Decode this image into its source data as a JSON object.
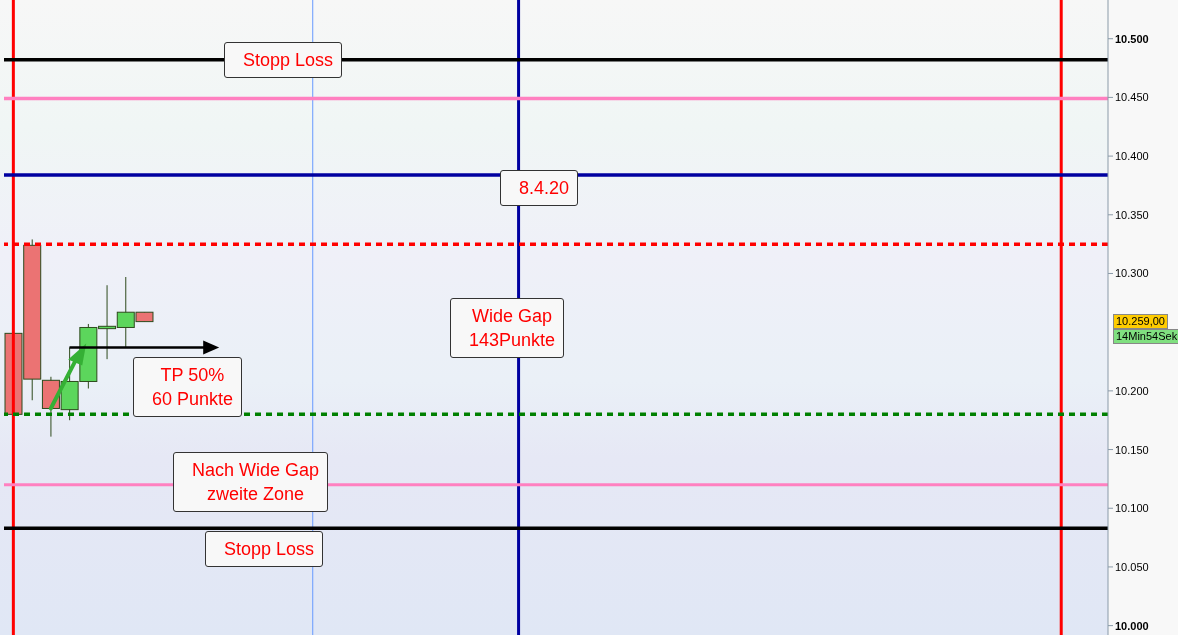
{
  "chart_data": {
    "type": "candlestick",
    "categories": [
      null,
      null,
      null,
      null,
      null,
      null,
      null,
      null,
      null,
      null,
      null,
      null,
      null,
      null,
      null,
      null,
      null,
      null,
      null,
      null,
      null,
      null,
      null,
      null,
      null,
      null,
      null,
      null,
      null,
      null,
      null,
      null,
      null,
      null,
      null,
      null,
      null,
      null,
      null,
      null,
      null,
      null,
      null,
      null,
      null,
      null,
      null,
      null,
      null,
      null,
      null,
      null,
      null,
      null,
      null,
      null,
      null,
      null,
      null
    ],
    "ohlc": [
      [
        10.249,
        10.249,
        10.18,
        10.18
      ],
      [
        10.324,
        10.329,
        10.192,
        10.21
      ],
      [
        10.209,
        10.212,
        10.161,
        10.185
      ],
      [
        10.184,
        10.237,
        10.175,
        10.208
      ],
      [
        10.208,
        10.257,
        10.202,
        10.254
      ],
      [
        10.253,
        10.29,
        10.227,
        10.255
      ],
      [
        10.254,
        10.297,
        10.237,
        10.267
      ],
      [
        10.267,
        10.267,
        10.259,
        10.259
      ],
      null,
      null,
      null,
      null,
      null,
      null,
      null,
      null,
      null,
      null,
      null,
      null,
      null,
      null,
      null,
      null,
      null,
      null,
      null,
      null,
      null,
      null,
      null,
      null,
      null,
      null,
      null,
      null,
      null,
      null,
      null,
      null,
      null,
      null,
      null,
      null,
      null,
      null,
      null,
      null,
      null,
      null,
      null,
      null,
      null,
      null,
      null,
      null,
      null,
      null,
      null
    ],
    "colors": [
      "#eb7373",
      "#eb7373",
      "#eb7373",
      "#5cd65c",
      "#5cd65c",
      "#5cd65c",
      "#5cd65c",
      "#eb7373",
      null,
      null,
      null,
      null,
      null,
      null,
      null,
      null,
      null,
      null,
      null,
      null,
      null,
      null,
      null,
      null,
      null,
      null,
      null,
      null,
      null,
      null,
      null,
      null,
      null,
      null,
      null,
      null,
      null,
      null,
      null,
      null,
      null,
      null,
      null,
      null,
      null,
      null,
      null,
      null,
      null,
      null,
      null,
      null,
      null,
      null,
      null,
      null,
      null,
      null,
      null
    ],
    "ylim": [
      9.992,
      10.533
    ],
    "yticks": [
      {
        "value": 10.0,
        "label": "10.000"
      },
      {
        "value": 10.05,
        "label": "10.050"
      },
      {
        "value": 10.1,
        "label": "10.100"
      },
      {
        "value": 10.15,
        "label": "10.150"
      },
      {
        "value": 10.2,
        "label": "10.200"
      },
      {
        "value": 10.3,
        "label": "10.300"
      },
      {
        "value": 10.35,
        "label": "10.350"
      },
      {
        "value": 10.4,
        "label": "10.400"
      },
      {
        "value": 10.45,
        "label": "10.450"
      },
      {
        "value": 10.5,
        "label": "10.500"
      }
    ],
    "tick_labels": "y",
    "ref_lines": [
      {
        "axis": "y",
        "value": 10.482,
        "label": "Stopp Loss",
        "color": "#000000"
      },
      {
        "axis": "y",
        "value": 10.449,
        "color": "#ff80c0"
      },
      {
        "axis": "y",
        "value": 10.384,
        "label": "8.4.20",
        "color": "#0000a0"
      },
      {
        "axis": "y",
        "value": 10.325,
        "color": "#ff0000",
        "line_style": "dotted"
      },
      {
        "axis": "y",
        "value": 10.18,
        "color": "#008000",
        "line_style": "dotted"
      },
      {
        "axis": "y",
        "value": 10.12,
        "label": "Nach Wide Gap\nzweite Zone",
        "color": "#ff80c0"
      },
      {
        "axis": "y",
        "value": 10.083,
        "label": "Stopp Loss",
        "color": "#000000"
      }
    ],
    "annotations": [
      "Wide Gap\n143Punkte",
      "TP 50%\n60 Punkte",
      "10.259,00",
      "14Min54Sek"
    ]
  }
}
